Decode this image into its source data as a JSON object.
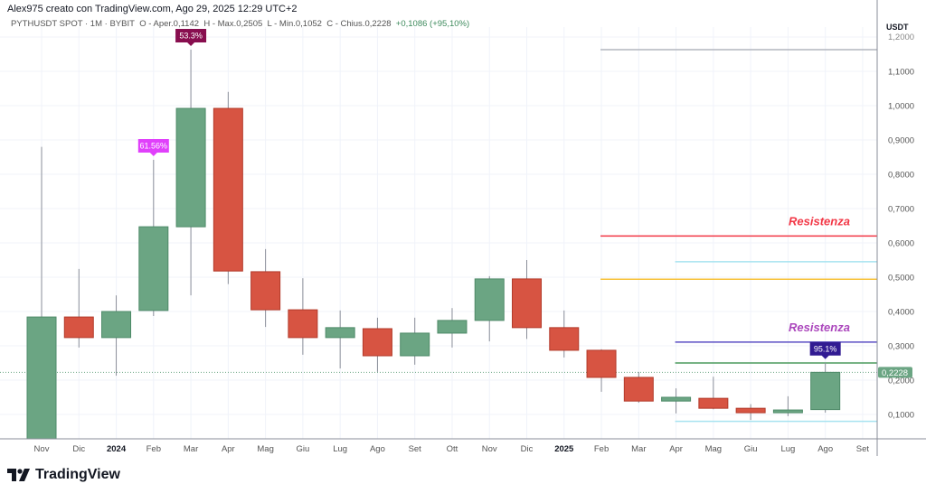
{
  "header": {
    "author_line": "Alex975 creato con TradingView.com, Ago 29, 2025 12:29 UTC+2",
    "symbol": "PYTHUSDT SPOT · 1M · BYBIT",
    "open": "O - Aper.0,1142",
    "high": "H - Max.0,2505",
    "low": "L - Min.0,1052",
    "close": "C - Chius.0,2228",
    "change": "+0,1086 (+95,10%)"
  },
  "axis": {
    "currency": "USDT",
    "price_ticks": [
      "0,1000",
      "0,2000",
      "0,3000",
      "0,4000",
      "0,5000",
      "0,6000",
      "0,7000",
      "0,8000",
      "0,9000",
      "1,0000",
      "1,1000",
      "1,2000"
    ],
    "price_tick_values": [
      0.1,
      0.2,
      0.3,
      0.4,
      0.5,
      0.6,
      0.7,
      0.8,
      0.9,
      1.0,
      1.1,
      1.2
    ],
    "time_labels": [
      "Nov",
      "Dic",
      "2024",
      "Feb",
      "Mar",
      "Apr",
      "Mag",
      "Giu",
      "Lug",
      "Ago",
      "Set",
      "Ott",
      "Nov",
      "Dic",
      "2025",
      "Feb",
      "Mar",
      "Apr",
      "Mag",
      "Giu",
      "Lug",
      "Ago",
      "Set"
    ],
    "current_price_label": "0,2228",
    "current_price": 0.2228
  },
  "chart_data": {
    "type": "candlestick",
    "candles": [
      {
        "o": 0.02,
        "h": 0.88,
        "l": 0.02,
        "c": 0.384
      },
      {
        "o": 0.384,
        "h": 0.524,
        "l": 0.295,
        "c": 0.324
      },
      {
        "o": 0.324,
        "h": 0.447,
        "l": 0.213,
        "c": 0.4
      },
      {
        "o": 0.403,
        "h": 0.842,
        "l": 0.387,
        "c": 0.647
      },
      {
        "o": 0.647,
        "h": 1.163,
        "l": 0.447,
        "c": 0.992
      },
      {
        "o": 0.992,
        "h": 1.04,
        "l": 0.48,
        "c": 0.518
      },
      {
        "o": 0.516,
        "h": 0.582,
        "l": 0.355,
        "c": 0.405
      },
      {
        "o": 0.405,
        "h": 0.497,
        "l": 0.274,
        "c": 0.324
      },
      {
        "o": 0.324,
        "h": 0.403,
        "l": 0.234,
        "c": 0.353
      },
      {
        "o": 0.35,
        "h": 0.382,
        "l": 0.224,
        "c": 0.271
      },
      {
        "o": 0.271,
        "h": 0.382,
        "l": 0.245,
        "c": 0.337
      },
      {
        "o": 0.337,
        "h": 0.41,
        "l": 0.295,
        "c": 0.374
      },
      {
        "o": 0.374,
        "h": 0.503,
        "l": 0.313,
        "c": 0.495
      },
      {
        "o": 0.495,
        "h": 0.55,
        "l": 0.32,
        "c": 0.353
      },
      {
        "o": 0.353,
        "h": 0.403,
        "l": 0.266,
        "c": 0.287
      },
      {
        "o": 0.287,
        "h": 0.29,
        "l": 0.166,
        "c": 0.208
      },
      {
        "o": 0.208,
        "h": 0.224,
        "l": 0.134,
        "c": 0.139
      },
      {
        "o": 0.139,
        "h": 0.176,
        "l": 0.103,
        "c": 0.15
      },
      {
        "o": 0.147,
        "h": 0.21,
        "l": 0.115,
        "c": 0.118
      },
      {
        "o": 0.118,
        "h": 0.13,
        "l": 0.084,
        "c": 0.105
      },
      {
        "o": 0.105,
        "h": 0.153,
        "l": 0.095,
        "c": 0.113
      },
      {
        "o": 0.1142,
        "h": 0.2505,
        "l": 0.1052,
        "c": 0.2228
      }
    ],
    "annotations": [
      {
        "index": 3,
        "text": "61.56%",
        "color": "#e040fb"
      },
      {
        "index": 4,
        "text": "53.3%",
        "color": "#880e4f"
      },
      {
        "index": 21,
        "text": "95.1%",
        "color": "#311b92"
      }
    ],
    "levels": [
      {
        "value": 1.163,
        "from": 15,
        "color": "#b2b5be"
      },
      {
        "value": 0.62,
        "from": 15,
        "color": "#f23645",
        "label": "Resistenza"
      },
      {
        "value": 0.545,
        "from": 17,
        "color": "#a6e3f0"
      },
      {
        "value": 0.494,
        "from": 15,
        "color": "#f7c137"
      },
      {
        "value": 0.311,
        "from": 17,
        "color": "#5b4fc4",
        "label": "Resistenza",
        "label_color": "#ab47bc"
      },
      {
        "value": 0.25,
        "from": 17,
        "color": "#4a9a5c"
      },
      {
        "value": 0.08,
        "from": 17,
        "color": "#a6e3f0"
      }
    ],
    "colors": {
      "up": "#6ba583",
      "down": "#d75442",
      "up_border": "#4e8a68",
      "down_border": "#b23a2a"
    }
  },
  "branding": {
    "logo_text": "TradingView"
  }
}
